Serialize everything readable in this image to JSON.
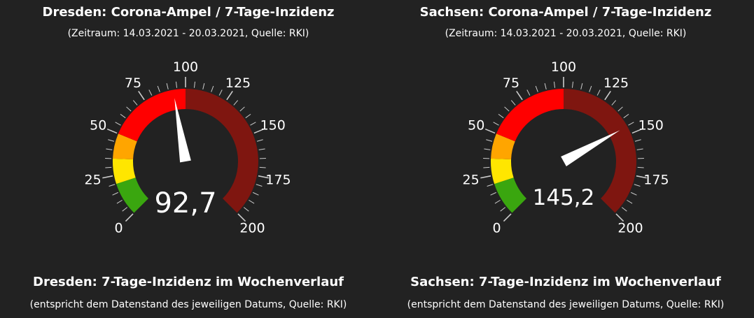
{
  "chart_data": [
    {
      "type": "gauge",
      "title": "Dresden: Corona-Ampel / 7-Tage-Inzidenz",
      "subtitle": "(Zeitraum: 14.03.2021 - 20.03.2021, Quelle: RKI)",
      "value": 92.7,
      "value_label": "92,7",
      "range": [
        0,
        200
      ],
      "tick_labels": [
        "0",
        "25",
        "50",
        "75",
        "100",
        "125",
        "150",
        "175",
        "200"
      ],
      "bands": [
        {
          "from": 0,
          "to": 20,
          "color": "#3aa60f"
        },
        {
          "from": 20,
          "to": 35,
          "color": "#ffe600"
        },
        {
          "from": 35,
          "to": 50,
          "color": "#ffa500"
        },
        {
          "from": 50,
          "to": 100,
          "color": "#ff0000"
        },
        {
          "from": 100,
          "to": 200,
          "color": "#7f1610"
        }
      ]
    },
    {
      "type": "gauge",
      "title": "Sachsen: Corona-Ampel / 7-Tage-Inzidenz",
      "subtitle": "(Zeitraum: 14.03.2021 - 20.03.2021, Quelle: RKI)",
      "value": 145.2,
      "value_label": "145,2",
      "range": [
        0,
        200
      ],
      "tick_labels": [
        "0",
        "25",
        "50",
        "75",
        "100",
        "125",
        "150",
        "175",
        "200"
      ],
      "bands": [
        {
          "from": 0,
          "to": 20,
          "color": "#3aa60f"
        },
        {
          "from": 20,
          "to": 35,
          "color": "#ffe600"
        },
        {
          "from": 35,
          "to": 50,
          "color": "#ffa500"
        },
        {
          "from": 50,
          "to": 100,
          "color": "#ff0000"
        },
        {
          "from": 100,
          "to": 200,
          "color": "#7f1610"
        }
      ]
    }
  ],
  "bottom_sections": [
    {
      "title": "Dresden: 7-Tage-Inzidenz im Wochenverlauf",
      "subtitle": "(entspricht dem Datenstand des jeweiligen Datums, Quelle: RKI)"
    },
    {
      "title": "Sachsen: 7-Tage-Inzidenz im Wochenverlauf",
      "subtitle": "(entspricht dem Datenstand des jeweiligen Datums, Quelle: RKI)"
    }
  ]
}
